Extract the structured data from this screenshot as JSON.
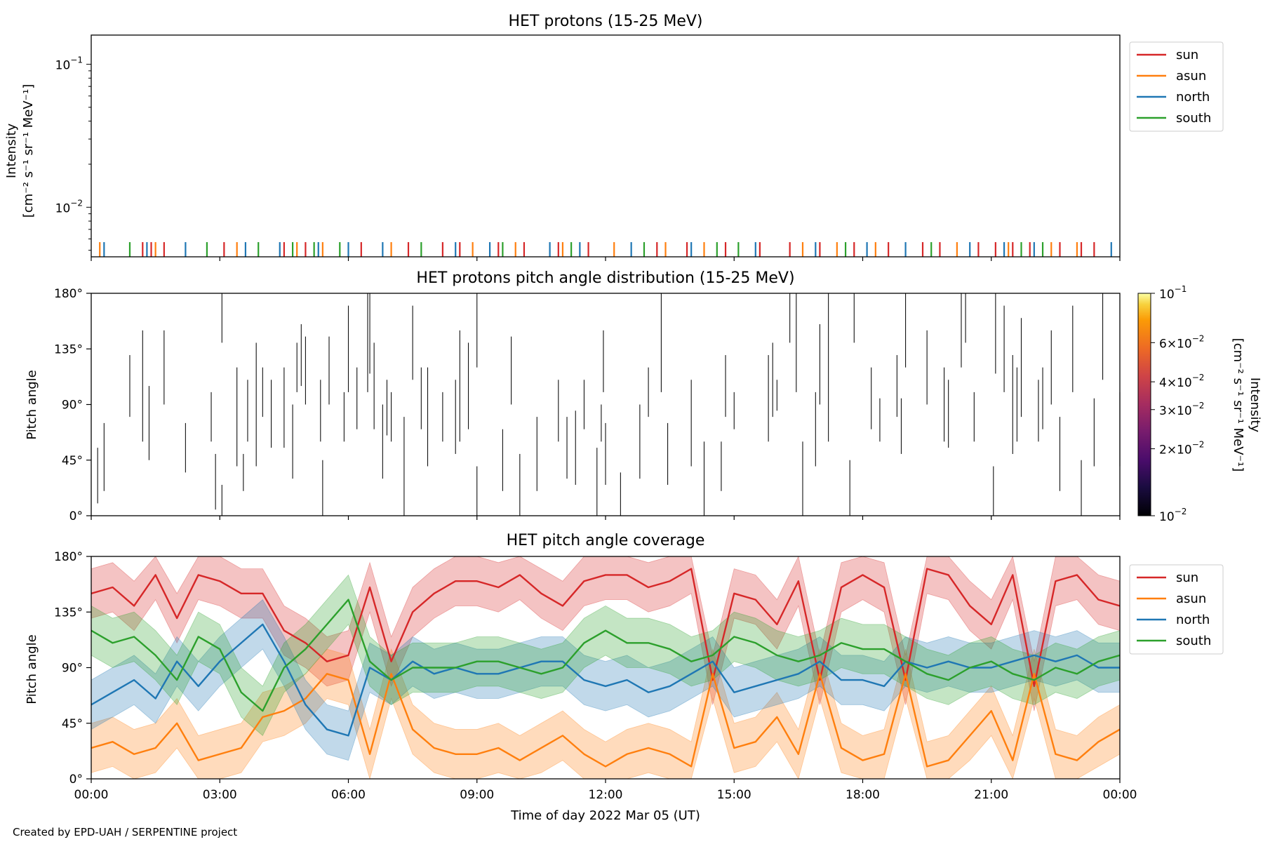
{
  "colors": {
    "sun": "#d62728",
    "asun": "#ff7f0e",
    "north": "#1f77b4",
    "south": "#2ca02c"
  },
  "x_axis": {
    "label": "Time of day 2022 Mar 05 (UT)",
    "ticks": [
      "00:00",
      "03:00",
      "06:00",
      "09:00",
      "12:00",
      "15:00",
      "18:00",
      "21:00",
      "00:00"
    ]
  },
  "credit": "Created by EPD-UAH / SERPENTINE project",
  "chart_data": [
    {
      "type": "line",
      "title": "HET protons (15-25 MeV)",
      "ylabel_line1": "Intensity",
      "ylabel_line2": "[cm⁻² s⁻¹ sr⁻¹ MeV⁻¹]",
      "yscale": "log",
      "ylim": [
        0.0045,
        0.16
      ],
      "yticks": [
        {
          "base": "10",
          "exp": "−1"
        },
        {
          "base": "10",
          "exp": "−2"
        }
      ],
      "xlim_hours": [
        0,
        24
      ],
      "legend": {
        "position": "outside-right",
        "entries": [
          "sun",
          "asun",
          "north",
          "south"
        ]
      },
      "series": [
        {
          "name": "sun",
          "spikes_hours": [
            1.2,
            1.4,
            1.7,
            3.1,
            4.5,
            5.0,
            6.3,
            7.4,
            8.2,
            8.6,
            9.5,
            10.1,
            10.9,
            11.6,
            13.2,
            13.9,
            14.8,
            15.6,
            16.3,
            17.0,
            17.8,
            18.6,
            19.4,
            19.8,
            20.7,
            21.1,
            21.5,
            21.9,
            22.6,
            23.1,
            23.4
          ]
        },
        {
          "name": "asun",
          "spikes_hours": [
            0.2,
            1.5,
            3.4,
            4.8,
            5.4,
            7.0,
            8.9,
            9.9,
            11.0,
            12.2,
            13.4,
            14.3,
            16.6,
            17.4,
            18.3,
            20.2,
            21.4,
            22.4,
            23.0
          ]
        },
        {
          "name": "north",
          "spikes_hours": [
            0.3,
            1.3,
            2.2,
            3.6,
            4.4,
            5.3,
            6.0,
            6.8,
            8.5,
            9.3,
            10.7,
            11.4,
            12.6,
            14.0,
            15.5,
            16.9,
            18.1,
            19.0,
            20.5,
            21.3,
            22.0,
            23.8
          ]
        },
        {
          "name": "south",
          "spikes_hours": [
            0.9,
            2.7,
            3.9,
            4.7,
            5.2,
            5.8,
            7.7,
            9.6,
            11.2,
            12.9,
            14.6,
            15.1,
            17.6,
            19.6,
            21.7,
            22.2
          ]
        }
      ]
    },
    {
      "type": "heatmap",
      "title": "HET protons pitch angle distribution (15-25 MeV)",
      "ylabel": "Pitch angle",
      "yticks": [
        "0°",
        "45°",
        "90°",
        "135°",
        "180°"
      ],
      "ylim": [
        0,
        180
      ],
      "xlim_hours": [
        0,
        24
      ],
      "colorbar": {
        "label_line1": "Intensity",
        "label_line2": "[cm⁻² s⁻¹ sr⁻¹ MeV⁻¹]",
        "scale": "log",
        "range": [
          0.01,
          0.1
        ],
        "ticks": [
          {
            "value": 0.1,
            "mant": "",
            "base": "10",
            "exp": "−1"
          },
          {
            "value": 0.06,
            "mant": "6×",
            "base": "10",
            "exp": "−2"
          },
          {
            "value": 0.04,
            "mant": "4×",
            "base": "10",
            "exp": "−2"
          },
          {
            "value": 0.03,
            "mant": "3×",
            "base": "10",
            "exp": "−2"
          },
          {
            "value": 0.02,
            "mant": "2×",
            "base": "10",
            "exp": "−2"
          },
          {
            "value": 0.01,
            "mant": "",
            "base": "10",
            "exp": "−2"
          }
        ]
      },
      "segments": [
        [
          0.15,
          10,
          55
        ],
        [
          0.3,
          20,
          75
        ],
        [
          0.9,
          80,
          130
        ],
        [
          1.2,
          60,
          150
        ],
        [
          1.35,
          45,
          105
        ],
        [
          1.7,
          90,
          150
        ],
        [
          2.2,
          35,
          75
        ],
        [
          2.8,
          60,
          100
        ],
        [
          2.9,
          5,
          50
        ],
        [
          3.05,
          0,
          25
        ],
        [
          3.05,
          140,
          180
        ],
        [
          3.4,
          40,
          120
        ],
        [
          3.55,
          20,
          50
        ],
        [
          3.65,
          60,
          110
        ],
        [
          3.85,
          40,
          140
        ],
        [
          4.0,
          80,
          120
        ],
        [
          4.2,
          55,
          110
        ],
        [
          4.5,
          55,
          120
        ],
        [
          4.7,
          30,
          90
        ],
        [
          4.8,
          100,
          140
        ],
        [
          4.9,
          105,
          155
        ],
        [
          5.0,
          90,
          145
        ],
        [
          5.35,
          60,
          110
        ],
        [
          5.4,
          0,
          45
        ],
        [
          5.55,
          90,
          145
        ],
        [
          5.9,
          60,
          100
        ],
        [
          6.0,
          100,
          170
        ],
        [
          6.2,
          70,
          120
        ],
        [
          6.45,
          100,
          180
        ],
        [
          6.5,
          115,
          180
        ],
        [
          6.6,
          70,
          140
        ],
        [
          6.8,
          30,
          90
        ],
        [
          6.9,
          65,
          110
        ],
        [
          7.0,
          60,
          100
        ],
        [
          7.3,
          0,
          80
        ],
        [
          7.5,
          110,
          170
        ],
        [
          7.7,
          70,
          120
        ],
        [
          7.85,
          40,
          120
        ],
        [
          8.2,
          60,
          100
        ],
        [
          8.5,
          50,
          110
        ],
        [
          8.6,
          60,
          150
        ],
        [
          8.8,
          70,
          140
        ],
        [
          9.0,
          0,
          40
        ],
        [
          9.0,
          120,
          180
        ],
        [
          9.6,
          20,
          70
        ],
        [
          9.8,
          90,
          145
        ],
        [
          10.0,
          0,
          50
        ],
        [
          10.4,
          20,
          80
        ],
        [
          10.9,
          60,
          110
        ],
        [
          11.1,
          30,
          80
        ],
        [
          11.3,
          25,
          85
        ],
        [
          11.5,
          70,
          110
        ],
        [
          11.8,
          0,
          55
        ],
        [
          11.9,
          60,
          90
        ],
        [
          11.95,
          100,
          150
        ],
        [
          12.0,
          25,
          75
        ],
        [
          12.35,
          0,
          35
        ],
        [
          12.8,
          30,
          90
        ],
        [
          13.0,
          80,
          120
        ],
        [
          13.3,
          100,
          180
        ],
        [
          13.45,
          25,
          75
        ],
        [
          14.0,
          40,
          110
        ],
        [
          14.3,
          0,
          60
        ],
        [
          14.7,
          20,
          60
        ],
        [
          14.8,
          80,
          130
        ],
        [
          15.0,
          70,
          100
        ],
        [
          15.8,
          60,
          130
        ],
        [
          15.9,
          80,
          140
        ],
        [
          16.0,
          85,
          110
        ],
        [
          16.3,
          140,
          180
        ],
        [
          16.45,
          100,
          180
        ],
        [
          16.6,
          0,
          60
        ],
        [
          16.9,
          40,
          100
        ],
        [
          17.0,
          90,
          155
        ],
        [
          17.2,
          60,
          180
        ],
        [
          17.7,
          0,
          45
        ],
        [
          17.8,
          140,
          180
        ],
        [
          18.2,
          70,
          120
        ],
        [
          18.4,
          60,
          95
        ],
        [
          18.8,
          80,
          130
        ],
        [
          18.9,
          50,
          95
        ],
        [
          19.0,
          120,
          180
        ],
        [
          19.5,
          90,
          150
        ],
        [
          19.9,
          60,
          120
        ],
        [
          20.0,
          55,
          110
        ],
        [
          20.3,
          120,
          180
        ],
        [
          20.4,
          140,
          180
        ],
        [
          20.6,
          60,
          100
        ],
        [
          21.05,
          0,
          40
        ],
        [
          21.1,
          115,
          180
        ],
        [
          21.3,
          100,
          170
        ],
        [
          21.5,
          50,
          130
        ],
        [
          21.6,
          60,
          120
        ],
        [
          21.7,
          80,
          160
        ],
        [
          22.1,
          60,
          110
        ],
        [
          22.2,
          70,
          120
        ],
        [
          22.4,
          90,
          150
        ],
        [
          22.6,
          20,
          80
        ],
        [
          22.9,
          100,
          170
        ],
        [
          23.1,
          0,
          45
        ],
        [
          23.4,
          40,
          95
        ],
        [
          23.6,
          110,
          180
        ],
        [
          24.0,
          40,
          100
        ]
      ]
    },
    {
      "type": "area",
      "title": "HET pitch angle coverage",
      "ylabel": "Pitch angle",
      "yticks": [
        "0°",
        "45°",
        "90°",
        "135°",
        "180°"
      ],
      "ylim": [
        0,
        180
      ],
      "xlim_hours": [
        0,
        24
      ],
      "legend": {
        "position": "outside-right",
        "entries": [
          "sun",
          "asun",
          "north",
          "south"
        ]
      },
      "x_hours": [
        0,
        0.5,
        1,
        1.5,
        2,
        2.5,
        3,
        3.5,
        4,
        4.5,
        5,
        5.5,
        6,
        6.5,
        7,
        7.5,
        8,
        8.5,
        9,
        9.5,
        10,
        10.5,
        11,
        11.5,
        12,
        12.5,
        13,
        13.5,
        14,
        14.5,
        15,
        15.5,
        16,
        16.5,
        17,
        17.5,
        18,
        18.5,
        19,
        19.5,
        20,
        20.5,
        21,
        21.5,
        22,
        22.5,
        23,
        23.5,
        24
      ],
      "series": [
        {
          "name": "sun",
          "center": [
            150,
            155,
            140,
            165,
            130,
            165,
            160,
            150,
            150,
            120,
            110,
            95,
            100,
            155,
            95,
            135,
            150,
            160,
            160,
            155,
            165,
            150,
            140,
            160,
            165,
            165,
            155,
            160,
            170,
            80,
            150,
            145,
            125,
            160,
            80,
            155,
            165,
            155,
            80,
            170,
            165,
            140,
            125,
            165,
            75,
            160,
            165,
            145,
            140
          ]
        },
        {
          "name": "asun",
          "center": [
            25,
            30,
            20,
            25,
            45,
            15,
            20,
            25,
            50,
            55,
            65,
            85,
            80,
            20,
            85,
            40,
            25,
            20,
            20,
            25,
            15,
            25,
            35,
            20,
            10,
            20,
            25,
            20,
            10,
            85,
            25,
            30,
            50,
            20,
            85,
            25,
            15,
            20,
            85,
            10,
            15,
            35,
            55,
            15,
            85,
            20,
            15,
            30,
            40
          ]
        },
        {
          "name": "north",
          "center": [
            60,
            70,
            80,
            65,
            95,
            75,
            95,
            110,
            125,
            95,
            60,
            40,
            35,
            90,
            80,
            95,
            85,
            90,
            85,
            85,
            90,
            95,
            95,
            80,
            75,
            80,
            70,
            75,
            85,
            95,
            70,
            75,
            80,
            85,
            95,
            80,
            80,
            75,
            95,
            90,
            95,
            90,
            90,
            95,
            100,
            95,
            100,
            90,
            90
          ]
        },
        {
          "name": "south",
          "center": [
            120,
            110,
            115,
            100,
            80,
            115,
            105,
            70,
            55,
            90,
            105,
            125,
            145,
            95,
            80,
            90,
            90,
            90,
            95,
            95,
            90,
            85,
            90,
            110,
            120,
            110,
            110,
            105,
            95,
            100,
            115,
            110,
            100,
            95,
            100,
            110,
            105,
            105,
            95,
            85,
            80,
            90,
            95,
            85,
            80,
            90,
            85,
            95,
            100
          ]
        }
      ],
      "band_halfwidth_deg": 20
    }
  ]
}
